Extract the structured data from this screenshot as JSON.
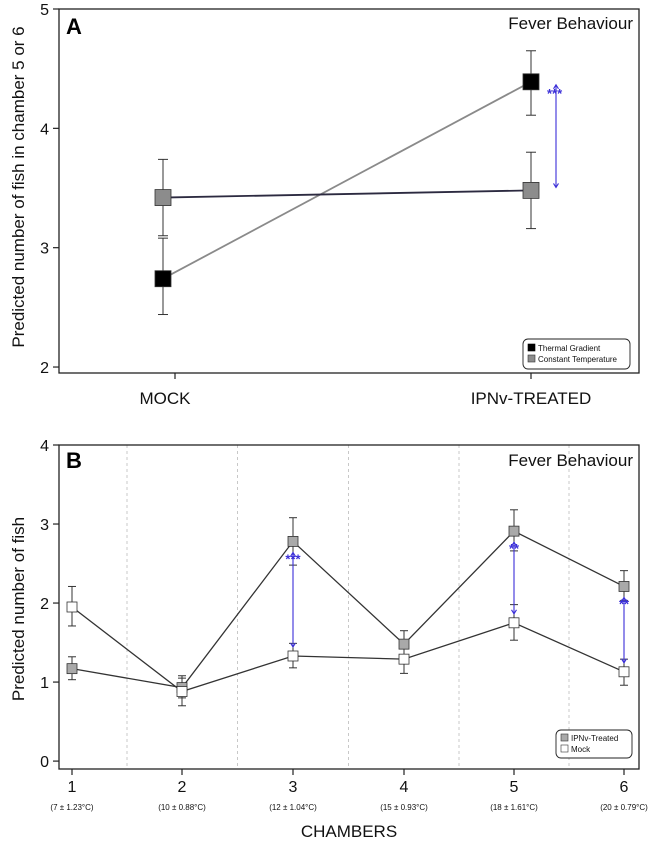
{
  "colors": {
    "thermal": "#000000",
    "constant": "#8c8c8c",
    "ipnv_treated": "#a9a9a9",
    "mock": "#ffffff",
    "line_a_thermal": "#8a8a8a",
    "line_a_constant": "#2c2a40",
    "line_b": "#333333",
    "significance": "#3b2fd8"
  },
  "chart_data": [
    {
      "type": "line",
      "panel_label": "A",
      "title": "Fever Behaviour",
      "ylabel": "Predicted number of fish in chamber 5 or 6",
      "xlabel": "",
      "categories": [
        "MOCK",
        "IPNv-TREATED"
      ],
      "ylim": [
        1.95,
        5
      ],
      "yticks": [
        2,
        3,
        4,
        5
      ],
      "legend": {
        "position": "bottom-right",
        "entries": [
          "Thermal Gradient",
          "Constant Temperature"
        ]
      },
      "series": [
        {
          "name": "Thermal Gradient",
          "values": [
            2.74,
            4.39
          ],
          "err_low": [
            2.44,
            4.11
          ],
          "err_high": [
            3.08,
            4.65
          ],
          "color_key": "thermal",
          "line_color_key": "line_a_thermal"
        },
        {
          "name": "Constant Temperature",
          "values": [
            3.42,
            3.48
          ],
          "err_low": [
            3.1,
            3.16
          ],
          "err_high": [
            3.74,
            3.8
          ],
          "color_key": "constant",
          "line_color_key": "line_a_constant"
        }
      ],
      "annotations": [
        {
          "text": "***",
          "category_index": 1,
          "from": 4.39,
          "to": 3.48
        }
      ]
    },
    {
      "type": "line",
      "panel_label": "B",
      "title": "Fever Behaviour",
      "ylabel": "Predicted number of fish",
      "xlabel": "CHAMBERS",
      "categories": [
        "1",
        "2",
        "3",
        "4",
        "5",
        "6"
      ],
      "category_sublabels": [
        "(7 ± 1.23°C)",
        "(10 ± 0.88°C)",
        "(12 ± 1.04°C)",
        "(15 ± 0.93°C)",
        "(18 ± 1.61°C)",
        "(20 ± 0.79°C)"
      ],
      "ylim": [
        -0.1,
        4
      ],
      "yticks": [
        0,
        1,
        2,
        3,
        4
      ],
      "grid": "vertical-dashed",
      "legend": {
        "position": "bottom-right",
        "entries": [
          "IPNv-Treated",
          "Mock"
        ]
      },
      "series": [
        {
          "name": "IPNv-Treated",
          "values": [
            1.17,
            0.93,
            2.78,
            1.48,
            2.91,
            2.21
          ],
          "err_low": [
            1.03,
            0.8,
            2.48,
            1.32,
            2.66,
            2.03
          ],
          "err_high": [
            1.32,
            1.08,
            3.08,
            1.65,
            3.18,
            2.41
          ],
          "color_key": "ipnv_treated"
        },
        {
          "name": "Mock",
          "values": [
            1.95,
            0.88,
            1.33,
            1.29,
            1.75,
            1.13
          ],
          "err_low": [
            1.71,
            0.7,
            1.18,
            1.11,
            1.53,
            0.96
          ],
          "err_high": [
            2.21,
            1.05,
            1.49,
            1.46,
            1.98,
            1.29
          ],
          "color_key": "mock"
        }
      ],
      "annotations": [
        {
          "text": "***",
          "category_index": 2,
          "from": 2.78,
          "to": 1.33
        },
        {
          "text": "**",
          "category_index": 4,
          "from": 2.91,
          "to": 1.75
        },
        {
          "text": "**",
          "category_index": 5,
          "from": 2.21,
          "to": 1.13
        }
      ]
    }
  ]
}
